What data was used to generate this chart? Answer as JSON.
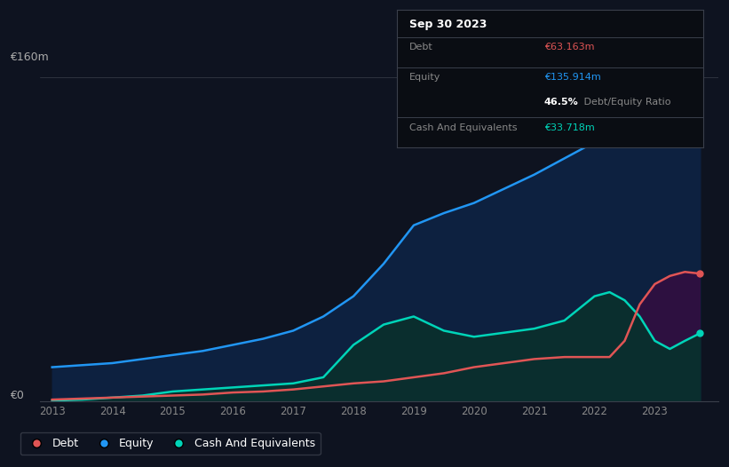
{
  "bg_color": "#0e1320",
  "plot_bg_color": "#0e1320",
  "equity_color": "#2196f3",
  "debt_color": "#e05555",
  "cash_color": "#00d4b8",
  "ylabel_text": "€160m",
  "y0_text": "€0",
  "years": [
    2013.0,
    2013.5,
    2014.0,
    2014.5,
    2015.0,
    2015.5,
    2016.0,
    2016.5,
    2017.0,
    2017.5,
    2018.0,
    2018.5,
    2019.0,
    2019.5,
    2020.0,
    2020.5,
    2021.0,
    2021.5,
    2022.0,
    2022.25,
    2022.5,
    2022.75,
    2023.0,
    2023.25,
    2023.5,
    2023.75
  ],
  "equity": [
    17,
    18,
    19,
    21,
    23,
    25,
    28,
    31,
    35,
    42,
    52,
    68,
    87,
    93,
    98,
    105,
    112,
    120,
    128,
    133,
    138,
    148,
    145,
    140,
    136,
    135.914
  ],
  "debt": [
    1,
    1.5,
    2,
    2.5,
    3,
    3.5,
    4.5,
    5,
    6,
    7.5,
    9,
    10,
    12,
    14,
    17,
    19,
    21,
    22,
    22,
    22,
    30,
    48,
    58,
    62,
    64,
    63.163
  ],
  "cash": [
    0.5,
    1,
    2,
    3,
    5,
    6,
    7,
    8,
    9,
    12,
    28,
    38,
    42,
    35,
    32,
    34,
    36,
    40,
    52,
    54,
    50,
    42,
    30,
    26,
    30,
    33.718
  ],
  "x_ticks": [
    2013,
    2014,
    2015,
    2016,
    2017,
    2018,
    2019,
    2020,
    2021,
    2022,
    2023
  ],
  "ymax": 160,
  "tooltip_date": "Sep 30 2023",
  "tooltip_debt_label": "Debt",
  "tooltip_debt_value": "€63.163m",
  "tooltip_equity_label": "Equity",
  "tooltip_equity_value": "€135.914m",
  "tooltip_ratio_bold": "46.5%",
  "tooltip_ratio_rest": " Debt/Equity Ratio",
  "tooltip_cash_label": "Cash And Equivalents",
  "tooltip_cash_value": "€33.718m",
  "legend_debt": "Debt",
  "legend_equity": "Equity",
  "legend_cash": "Cash And Equivalents"
}
